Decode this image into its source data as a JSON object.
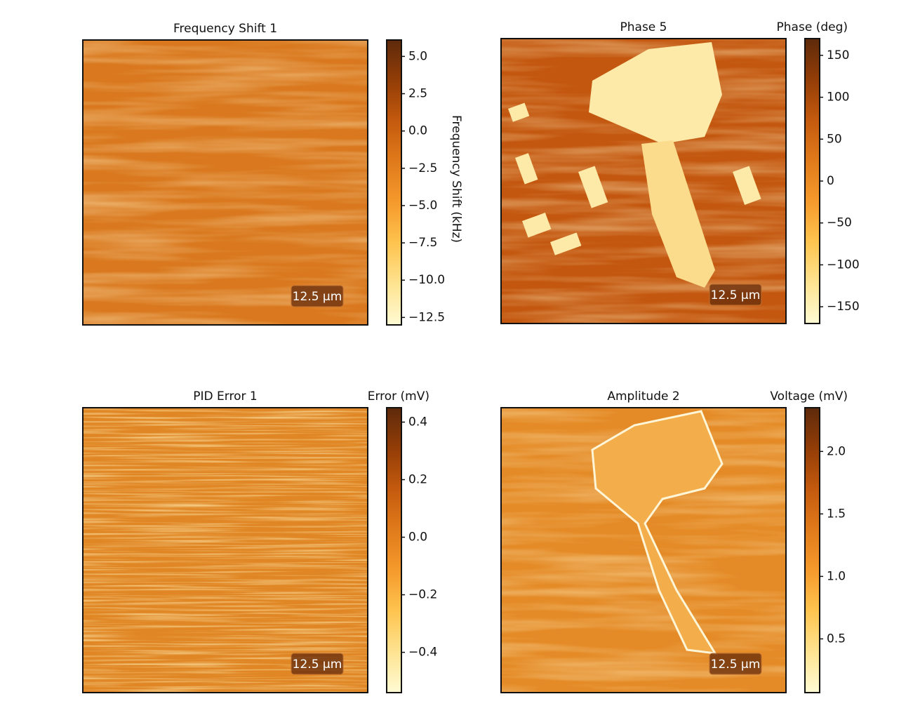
{
  "chart_data": [
    {
      "type": "image",
      "title": "Frequency Shift 1",
      "colorbar_label": "Frequency Shift (kHz)",
      "colorbar_label_position": "right",
      "scale_bar": "12.5 μm",
      "clim": [
        -13.0,
        6.1
      ],
      "colorbar_ticks": [
        {
          "value": 5,
          "label": "5.0"
        },
        2.5,
        {
          "value": 0,
          "label": "0.0"
        },
        {
          "value": -2.5,
          "label": "−2.5"
        },
        {
          "value": -5,
          "label": "−5.0"
        },
        {
          "value": -7.5,
          "label": "−7.5"
        },
        {
          "value": -10,
          "label": "−10.0"
        },
        {
          "value": -12.5,
          "label": "−12.5"
        }
      ],
      "colormap": [
        "#fffbd4",
        "#fee391",
        "#fec44f",
        "#f59a2c",
        "#e07b1b",
        "#c45a0e",
        "#933d07",
        "#5e2a0b"
      ]
    },
    {
      "type": "image",
      "title": "Phase 5",
      "colorbar_label": "Phase (deg)",
      "colorbar_label_position": "top",
      "scale_bar": "12.5 μm",
      "clim": [
        -170,
        170
      ],
      "colorbar_ticks": [
        150,
        100,
        50,
        0,
        {
          "value": -50,
          "label": "−50"
        },
        {
          "value": -100,
          "label": "−100"
        },
        {
          "value": -150,
          "label": "−150"
        }
      ],
      "colormap": [
        "#fffbd4",
        "#fee391",
        "#fec44f",
        "#f59a2c",
        "#e07b1b",
        "#c45a0e",
        "#933d07",
        "#5e2a0b"
      ]
    },
    {
      "type": "image",
      "title": "PID Error 1",
      "colorbar_label": "Error (mV)",
      "colorbar_label_position": "top",
      "scale_bar": "12.5 μm",
      "clim": [
        -0.54,
        0.45
      ],
      "colorbar_ticks": [
        0.4,
        0.2,
        {
          "value": 0,
          "label": "0.0"
        },
        {
          "value": -0.2,
          "label": "−0.2"
        },
        {
          "value": -0.4,
          "label": "−0.4"
        }
      ],
      "colormap": [
        "#fffbd4",
        "#fee391",
        "#fec44f",
        "#f59a2c",
        "#e07b1b",
        "#c45a0e",
        "#933d07",
        "#5e2a0b"
      ]
    },
    {
      "type": "image",
      "title": "Amplitude 2",
      "colorbar_label": "Voltage (mV)",
      "colorbar_label_position": "top",
      "scale_bar": "12.5 μm",
      "clim": [
        0.07,
        2.35
      ],
      "colorbar_ticks": [
        {
          "value": 2,
          "label": "2.0"
        },
        1.5,
        {
          "value": 1,
          "label": "1.0"
        },
        0.5
      ],
      "colormap": [
        "#fffbd4",
        "#fee391",
        "#fec44f",
        "#f59a2c",
        "#e07b1b",
        "#c45a0e",
        "#933d07",
        "#5e2a0b"
      ]
    }
  ]
}
